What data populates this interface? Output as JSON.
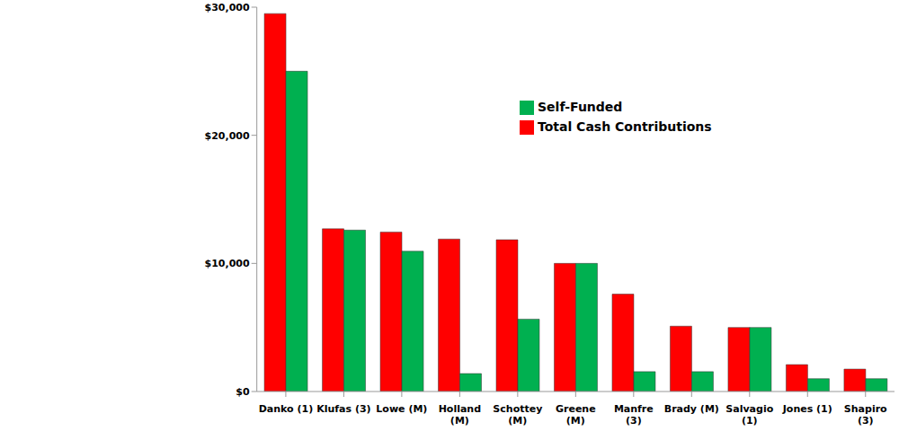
{
  "chart_data": {
    "type": "bar",
    "categories": [
      "Danko (1)",
      "Klufas (3)",
      "Lowe (M)",
      "Holland (M)",
      "Schottey (M)",
      "Greene (M)",
      "Manfre (3)",
      "Brady (M)",
      "Salvagio (1)",
      "Jones (1)",
      "Shapiro (3)"
    ],
    "series": [
      {
        "name": "Total Cash Contributions",
        "color": "#ff0000",
        "values": [
          29500,
          12700,
          12450,
          11900,
          11850,
          10000,
          7600,
          5100,
          5000,
          2100,
          1750
        ]
      },
      {
        "name": "Self-Funded",
        "color": "#00b050",
        "values": [
          25000,
          12600,
          10950,
          1400,
          5650,
          10000,
          1550,
          1550,
          5000,
          1000,
          1000
        ]
      }
    ],
    "ylim": [
      0,
      30000
    ],
    "yticks": [
      {
        "value": 0,
        "label": "$0"
      },
      {
        "value": 10000,
        "label": "$10,000"
      },
      {
        "value": 20000,
        "label": "$20,000"
      },
      {
        "value": 30000,
        "label": "$30,000"
      }
    ],
    "grid": false,
    "legend": "upper right"
  }
}
